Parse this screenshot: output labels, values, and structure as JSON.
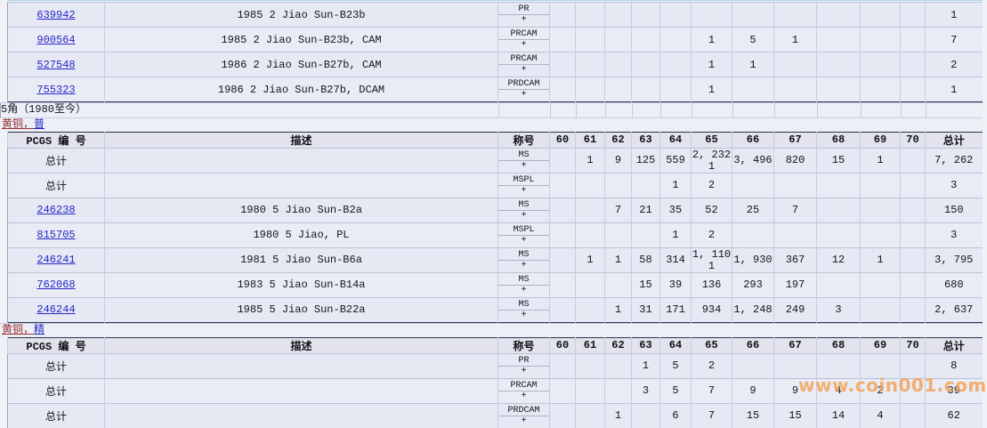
{
  "columns": {
    "pcgs": "PCGS 编 号",
    "desc": "描述",
    "desig": "称号",
    "grades": [
      "60",
      "61",
      "62",
      "63",
      "64",
      "65",
      "66",
      "67",
      "68",
      "69",
      "70"
    ],
    "total": "总计"
  },
  "top_table": {
    "rows": [
      {
        "pcgs": "639942",
        "link": true,
        "desc": "1985 2 Jiao Sun-B23b",
        "desig": "PR",
        "plus": "+",
        "values": [
          "",
          "",
          "",
          "",
          "",
          "",
          "",
          "",
          "",
          "",
          ""
        ],
        "total": "1"
      },
      {
        "pcgs": "900564",
        "link": true,
        "desc": "1985 2 Jiao Sun-B23b, CAM",
        "desig": "PRCAM",
        "plus": "+",
        "values": [
          "",
          "",
          "",
          "",
          "",
          "1",
          "5",
          "1",
          "",
          "",
          ""
        ],
        "total": "7"
      },
      {
        "pcgs": "527548",
        "link": true,
        "desc": "1986 2 Jiao Sun-B27b, CAM",
        "desig": "PRCAM",
        "plus": "+",
        "values": [
          "",
          "",
          "",
          "",
          "",
          "1",
          "1",
          "",
          "",
          "",
          ""
        ],
        "total": "2"
      },
      {
        "pcgs": "755323",
        "link": true,
        "desc": "1986 2 Jiao Sun-B27b, DCAM",
        "desig": "PRDCAM",
        "plus": "+",
        "values": [
          "",
          "",
          "",
          "",
          "",
          "1",
          "",
          "",
          "",
          "",
          ""
        ],
        "total": "1"
      }
    ]
  },
  "section": {
    "title": "5角（1980至今）"
  },
  "links": {
    "ms_prefix": "黄铜，",
    "ms_suffix": "普",
    "pr_prefix": "黄铜，",
    "pr_suffix": "精"
  },
  "ms_table": {
    "rows": [
      {
        "pcgs": "总计",
        "desc": "",
        "desig": "MS",
        "plus": "+",
        "values": [
          "",
          "1",
          "9",
          "125",
          "559",
          "2, 232",
          "3, 496",
          "820",
          "15",
          "1",
          ""
        ],
        "plus_values": [
          "",
          "",
          "",
          "",
          "",
          "1",
          "",
          "",
          "",
          "",
          ""
        ],
        "total": "7, 262"
      },
      {
        "pcgs": "总计",
        "desc": "",
        "desig": "MSPL",
        "plus": "+",
        "values": [
          "",
          "",
          "",
          "",
          "1",
          "2",
          "",
          "",
          "",
          "",
          ""
        ],
        "total": "3"
      },
      {
        "pcgs": "246238",
        "link": true,
        "desc": "1980 5 Jiao Sun-B2a",
        "desig": "MS",
        "plus": "+",
        "values": [
          "",
          "",
          "7",
          "21",
          "35",
          "52",
          "25",
          "7",
          "",
          "",
          ""
        ],
        "total": "150"
      },
      {
        "pcgs": "815705",
        "link": true,
        "desc": "1980 5 Jiao, PL",
        "desig": "MSPL",
        "plus": "+",
        "values": [
          "",
          "",
          "",
          "",
          "1",
          "2",
          "",
          "",
          "",
          "",
          ""
        ],
        "total": "3"
      },
      {
        "pcgs": "246241",
        "link": true,
        "desc": "1981 5 Jiao Sun-B6a",
        "desig": "MS",
        "plus": "+",
        "values": [
          "",
          "1",
          "1",
          "58",
          "314",
          "1, 110",
          "1, 930",
          "367",
          "12",
          "1",
          ""
        ],
        "plus_values": [
          "",
          "",
          "",
          "",
          "",
          "1",
          "",
          "",
          "",
          "",
          ""
        ],
        "total": "3, 795"
      },
      {
        "pcgs": "762068",
        "link": true,
        "desc": "1983 5 Jiao Sun-B14a",
        "desig": "MS",
        "plus": "+",
        "values": [
          "",
          "",
          "",
          "15",
          "39",
          "136",
          "293",
          "197",
          "",
          "",
          ""
        ],
        "total": "680"
      },
      {
        "pcgs": "246244",
        "link": true,
        "desc": "1985 5 Jiao Sun-B22a",
        "desig": "MS",
        "plus": "+",
        "values": [
          "",
          "",
          "1",
          "31",
          "171",
          "934",
          "1, 248",
          "249",
          "3",
          "",
          ""
        ],
        "total": "2, 637"
      }
    ]
  },
  "pr_table": {
    "rows": [
      {
        "pcgs": "总计",
        "desc": "",
        "desig": "PR",
        "plus": "+",
        "values": [
          "",
          "",
          "",
          "1",
          "5",
          "2",
          "",
          "",
          "",
          "",
          ""
        ],
        "total": "8"
      },
      {
        "pcgs": "总计",
        "desc": "",
        "desig": "PRCAM",
        "plus": "+",
        "values": [
          "",
          "",
          "",
          "3",
          "5",
          "7",
          "9",
          "9",
          "4",
          "2",
          ""
        ],
        "total": "39"
      },
      {
        "pcgs": "总计",
        "desc": "",
        "desig": "PRDCAM",
        "plus": "+",
        "values": [
          "",
          "",
          "1",
          "",
          "6",
          "7",
          "15",
          "15",
          "14",
          "4",
          ""
        ],
        "total": "62"
      }
    ]
  },
  "watermark": {
    "text": "www.coin001.com",
    "color": "#F49C4C"
  },
  "colors": {
    "link": "#2626C9",
    "visited_link": "#9A3434",
    "dark_rule": "#2A3350"
  }
}
